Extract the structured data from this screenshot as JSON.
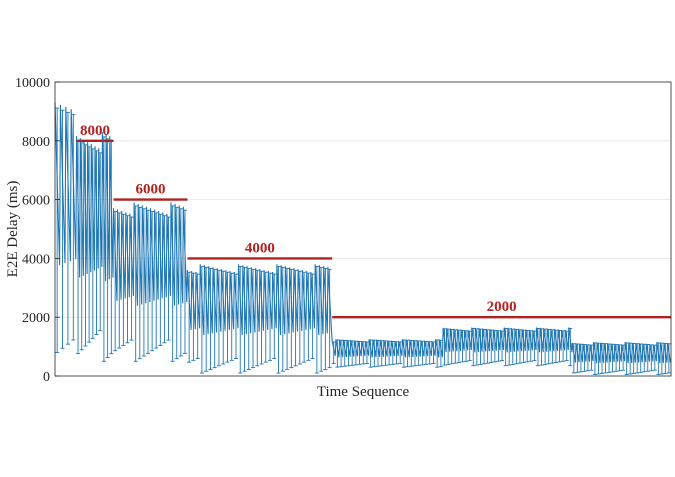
{
  "chart_data": {
    "type": "line",
    "title": "",
    "xlabel": "Time Sequence",
    "ylabel": "E2E Delay (ms)",
    "ylim": [
      0,
      10000
    ],
    "y_ticks": [
      "0",
      "2000",
      "4000",
      "6000",
      "8000",
      "10000"
    ],
    "grid": "horizontal",
    "series_color": "#1f77b4",
    "threshold_color": "#b22222",
    "thresholds": [
      {
        "label": "8000",
        "value": 8000,
        "x_range": [
          0.035,
          0.095
        ]
      },
      {
        "label": "6000",
        "value": 6000,
        "x_range": [
          0.095,
          0.215
        ]
      },
      {
        "label": "4000",
        "value": 4000,
        "x_range": [
          0.215,
          0.45
        ]
      },
      {
        "label": "2000",
        "value": 2000,
        "x_range": [
          0.45,
          1.0
        ]
      }
    ],
    "segments": [
      {
        "x_range": [
          0.0,
          0.035
        ],
        "pattern": "sawtooth",
        "peak": 9300,
        "trough": 800,
        "cycles": 4
      },
      {
        "x_range": [
          0.035,
          0.095
        ],
        "pattern": "sawtooth",
        "peak": 8300,
        "trough": 500,
        "cycles": 10
      },
      {
        "x_range": [
          0.095,
          0.215
        ],
        "pattern": "sawtooth",
        "peak": 5900,
        "trough": 500,
        "cycles": 18
      },
      {
        "x_range": [
          0.215,
          0.45
        ],
        "pattern": "sawtooth",
        "peak": 3800,
        "trough": 100,
        "cycles": 34
      },
      {
        "x_range": [
          0.45,
          0.63
        ],
        "pattern": "sawtooth",
        "peak": 1250,
        "trough": 300,
        "cycles": 30
      },
      {
        "x_range": [
          0.63,
          0.84
        ],
        "pattern": "sawtooth",
        "peak": 1650,
        "trough": 350,
        "cycles": 36
      },
      {
        "x_range": [
          0.84,
          1.0
        ],
        "pattern": "sawtooth",
        "peak": 1150,
        "trough": 50,
        "cycles": 28
      }
    ]
  }
}
